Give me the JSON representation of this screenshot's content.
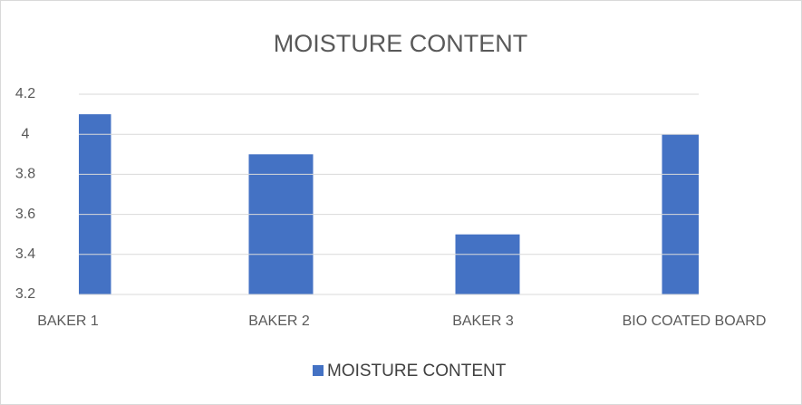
{
  "chart_data": {
    "type": "bar",
    "title": "MOISTURE CONTENT",
    "categories": [
      "BAKER 1",
      "BAKER 2",
      "BAKER 3",
      "BIO COATED BOARD"
    ],
    "series": [
      {
        "name": "MOISTURE CONTENT",
        "color": "#4472c4",
        "values": [
          4.1,
          3.9,
          3.5,
          4.0
        ]
      }
    ],
    "ylim": [
      3.2,
      4.2
    ],
    "yticks": [
      3.2,
      3.4,
      3.6,
      3.8,
      4,
      4.2
    ],
    "grid": true,
    "legend": "bottom"
  }
}
